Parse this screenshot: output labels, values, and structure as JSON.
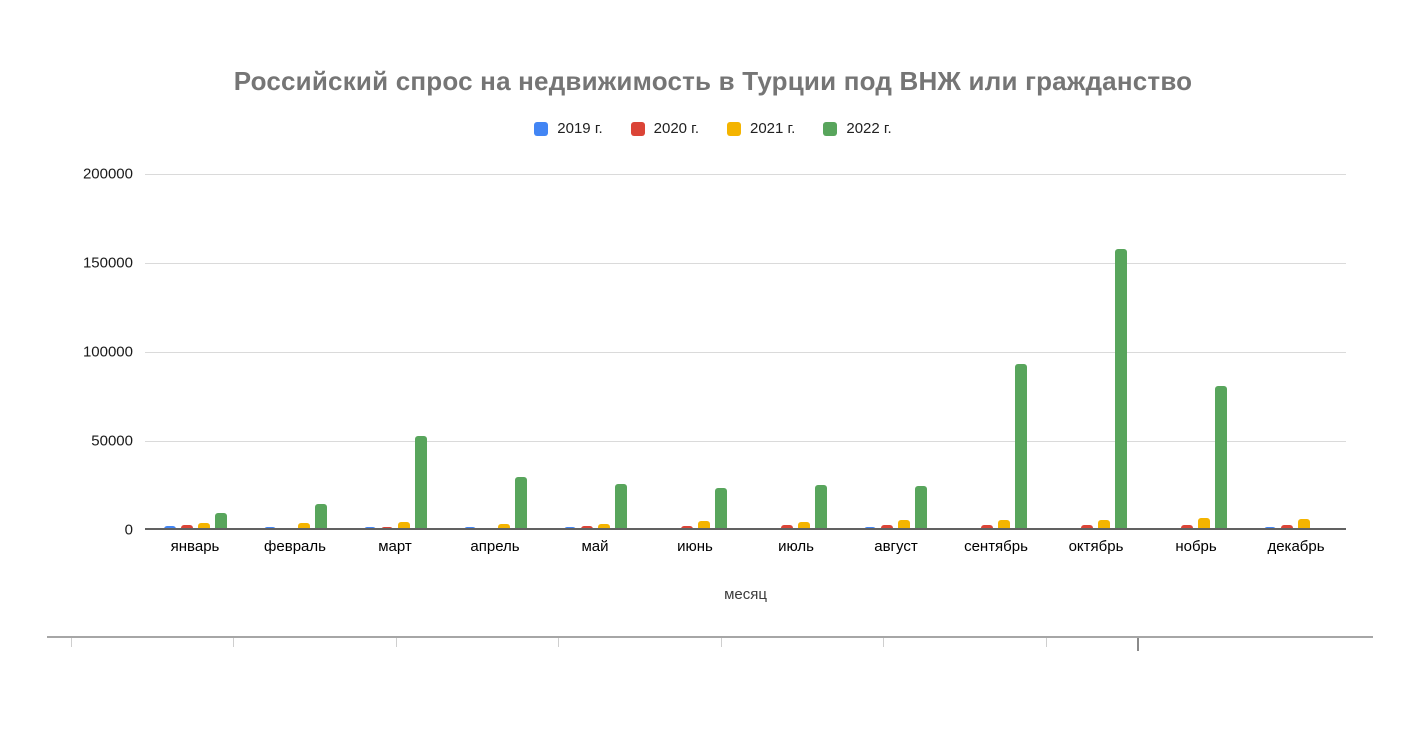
{
  "chart_data": {
    "type": "bar",
    "title": "Российский спрос на недвижимость в Турции под ВНЖ или гражданство",
    "xlabel": "месяц",
    "ylabel": "",
    "ylim": [
      0,
      200000
    ],
    "yticks": [
      0,
      50000,
      100000,
      150000,
      200000
    ],
    "grid": true,
    "legend_position": "top",
    "categories": [
      "январь",
      "февраль",
      "март",
      "апрель",
      "май",
      "июнь",
      "июль",
      "август",
      "сентябрь",
      "октябрь",
      "нобрь",
      "декабрь"
    ],
    "series": [
      {
        "name": "2019 г.",
        "color": "#4285F4",
        "values": [
          2200,
          1500,
          1700,
          1500,
          1600,
          1300,
          1300,
          1500,
          1300,
          1200,
          1300,
          1500
        ]
      },
      {
        "name": "2020 г.",
        "color": "#DB4437",
        "values": [
          2800,
          1400,
          1500,
          700,
          2200,
          2300,
          2800,
          3000,
          2800,
          2800,
          2800,
          2800
        ]
      },
      {
        "name": "2021 г.",
        "color": "#F4B400",
        "values": [
          4100,
          3900,
          4300,
          3500,
          3200,
          5000,
          4500,
          5600,
          5800,
          5600,
          6500,
          6000
        ]
      },
      {
        "name": "2022 г.",
        "color": "#58A55C",
        "values": [
          9500,
          14500,
          53000,
          29500,
          26000,
          23500,
          25000,
          24500,
          93000,
          158000,
          81000,
          0
        ]
      }
    ]
  }
}
